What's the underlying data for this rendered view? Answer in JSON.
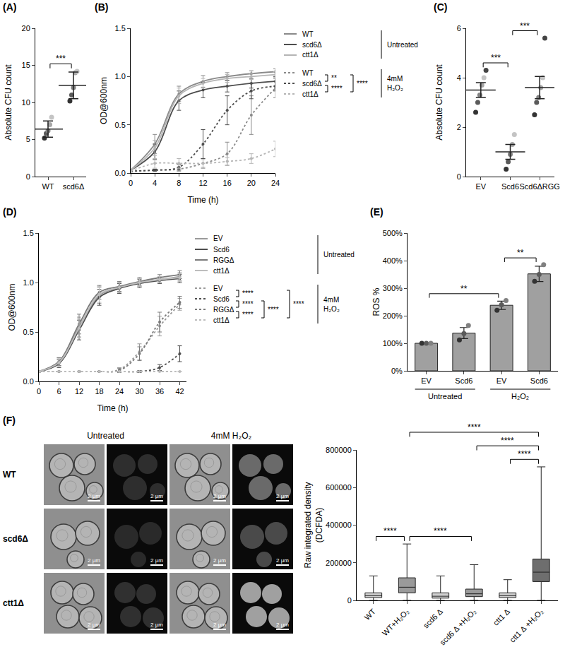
{
  "chart_data": [
    {
      "panel": "(A)",
      "type": "dot",
      "categories": [
        "WT",
        "scd6Δ"
      ],
      "points": [
        [
          5.2,
          5.8,
          6.2,
          7.0,
          8.0
        ],
        [
          10.2,
          11.0,
          12.0,
          14.0,
          14.2
        ]
      ],
      "mean": [
        6.4,
        12.3
      ],
      "error": [
        1.1,
        1.8
      ],
      "ylabel": "Absolute CFU count",
      "ylim": [
        0,
        20
      ],
      "yticks": [
        0,
        5,
        10,
        15,
        20
      ],
      "grid": false,
      "significance": [
        {
          "pair": [
            "WT",
            "scd6Δ"
          ],
          "label": "***"
        }
      ]
    },
    {
      "panel": "(B)",
      "type": "line",
      "xlabel": "Time (h)",
      "ylabel": "OD@600nm",
      "x": [
        0,
        4,
        8,
        12,
        16,
        20,
        24
      ],
      "xlim": [
        0,
        24
      ],
      "xticks": [
        0,
        4,
        8,
        12,
        16,
        20,
        24
      ],
      "ylim": [
        0,
        1.5
      ],
      "yticks": [
        {
          "value": 0,
          "label": "0.0"
        },
        {
          "value": 0.5,
          "label": "0.5"
        },
        {
          "value": 1,
          "label": "1.0"
        },
        {
          "value": 1.5,
          "label": "1.5"
        }
      ],
      "grid": false,
      "groups": [
        {
          "label": "Untreated",
          "series": [
            {
              "name": "WT",
              "color": "#8a8a8a",
              "line_style": "solid",
              "values": [
                0.03,
                0.3,
                0.82,
                0.95,
                1.0,
                1.03,
                1.05
              ],
              "error": [
                0.01,
                0.1,
                0.08,
                0.06,
                0.04,
                0.03,
                0.03
              ]
            },
            {
              "name": "scd6Δ",
              "color": "#4d4d4d",
              "line_style": "solid",
              "values": [
                0.03,
                0.22,
                0.75,
                0.86,
                0.9,
                0.93,
                0.95
              ],
              "error": [
                0.01,
                0.08,
                0.1,
                0.08,
                0.06,
                0.05,
                0.05
              ]
            },
            {
              "name": "ctt1Δ",
              "color": "#b5b5b5",
              "line_style": "solid",
              "values": [
                0.03,
                0.26,
                0.8,
                0.93,
                0.98,
                1.0,
                1.02
              ],
              "error": [
                0.01,
                0.08,
                0.08,
                0.05,
                0.04,
                0.03,
                0.03
              ]
            }
          ]
        },
        {
          "label": "4mM H₂O₂",
          "series": [
            {
              "name": "WT",
              "color": "#8a8a8a",
              "line_style": "dot",
              "values": [
                0.02,
                0.03,
                0.04,
                0.1,
                0.2,
                0.6,
                0.88
              ],
              "error": [
                0.01,
                0.01,
                0.02,
                0.05,
                0.12,
                0.2,
                0.1
              ]
            },
            {
              "name": "scd6Δ",
              "color": "#4d4d4d",
              "line_style": "dot",
              "values": [
                0.02,
                0.03,
                0.06,
                0.3,
                0.65,
                0.85,
                0.9
              ],
              "error": [
                0.01,
                0.01,
                0.03,
                0.15,
                0.15,
                0.08,
                0.05
              ]
            },
            {
              "name": "ctt1Δ",
              "color": "#b5b5b5",
              "line_style": "dot",
              "values": [
                0.02,
                0.1,
                0.1,
                0.1,
                0.12,
                0.15,
                0.25
              ],
              "error": [
                0.01,
                0.05,
                0.05,
                0.04,
                0.04,
                0.05,
                0.08
              ]
            }
          ],
          "significance": [
            {
              "pair": [
                "WT",
                "scd6Δ"
              ],
              "label": "**"
            },
            {
              "pair": [
                "scd6Δ",
                "ctt1Δ"
              ],
              "label": "****"
            },
            {
              "pair": [
                "WT",
                "ctt1Δ"
              ],
              "label": "****"
            }
          ]
        }
      ]
    },
    {
      "panel": "(C)",
      "type": "dot",
      "categories": [
        "EV",
        "Scd6",
        "Scd6ΔRGG"
      ],
      "points": [
        [
          2.6,
          3.0,
          3.3,
          3.7,
          4.0,
          4.3
        ],
        [
          0.3,
          0.6,
          0.9,
          1.3,
          1.7
        ],
        [
          2.5,
          3.0,
          3.2,
          3.6,
          4.0,
          5.6
        ]
      ],
      "mean": [
        3.5,
        1.0,
        3.6
      ],
      "error": [
        0.3,
        0.3,
        0.45
      ],
      "ylabel": "Absolute CFU count",
      "ylim": [
        0,
        6
      ],
      "yticks": [
        0,
        2,
        4,
        6
      ],
      "grid": false,
      "significance": [
        {
          "pair": [
            "EV",
            "Scd6"
          ],
          "label": "***"
        },
        {
          "pair": [
            "Scd6",
            "Scd6ΔRGG"
          ],
          "label": "***"
        }
      ]
    },
    {
      "panel": "(D)",
      "type": "line",
      "xlabel": "Time (h)",
      "ylabel": "OD@600nm",
      "x": [
        0,
        6,
        12,
        18,
        24,
        30,
        36,
        42
      ],
      "xlim": [
        0,
        44
      ],
      "xticks": [
        0,
        6,
        12,
        18,
        24,
        30,
        36,
        42
      ],
      "ylim": [
        0,
        1.5
      ],
      "yticks": [
        {
          "value": 0,
          "label": "0.0"
        },
        {
          "value": 0.5,
          "label": "0.5"
        },
        {
          "value": 1,
          "label": "1.0"
        },
        {
          "value": 1.5,
          "label": "1.5"
        }
      ],
      "grid": false,
      "groups": [
        {
          "label": "Untreated",
          "series": [
            {
              "name": "EV",
              "color": "#9a9a9a",
              "line_style": "solid",
              "values": [
                0.1,
                0.2,
                0.55,
                0.87,
                0.95,
                1.0,
                1.03,
                1.06
              ],
              "error": [
                0.01,
                0.04,
                0.1,
                0.08,
                0.05,
                0.04,
                0.03,
                0.04
              ]
            },
            {
              "name": "Scd6",
              "color": "#4d4d4d",
              "line_style": "solid",
              "values": [
                0.1,
                0.18,
                0.52,
                0.85,
                0.94,
                0.99,
                1.02,
                1.04
              ],
              "error": [
                0.01,
                0.04,
                0.1,
                0.08,
                0.05,
                0.04,
                0.03,
                0.04
              ]
            },
            {
              "name": "RGGΔ",
              "color": "#7a7a7a",
              "line_style": "solid",
              "values": [
                0.1,
                0.2,
                0.58,
                0.9,
                0.96,
                1.01,
                1.05,
                1.08
              ],
              "error": [
                0.01,
                0.04,
                0.1,
                0.07,
                0.05,
                0.04,
                0.03,
                0.04
              ]
            },
            {
              "name": "ctt1Δ",
              "color": "#bdbdbd",
              "line_style": "solid",
              "values": [
                0.1,
                0.19,
                0.54,
                0.88,
                0.95,
                1.0,
                1.03,
                1.05
              ],
              "error": [
                0.01,
                0.04,
                0.1,
                0.08,
                0.05,
                0.04,
                0.03,
                0.04
              ]
            }
          ]
        },
        {
          "label": "4mM H₂O₂",
          "series": [
            {
              "name": "EV",
              "color": "#9a9a9a",
              "line_style": "dot",
              "values": [
                0.1,
                0.1,
                0.1,
                0.1,
                0.12,
                0.3,
                0.56,
                0.78
              ],
              "error": [
                0,
                0,
                0,
                0,
                0.02,
                0.08,
                0.1,
                0.06
              ]
            },
            {
              "name": "Scd6",
              "color": "#4d4d4d",
              "line_style": "dot",
              "values": [
                0.1,
                0.1,
                0.1,
                0.1,
                0.1,
                0.1,
                0.14,
                0.28
              ],
              "error": [
                0,
                0,
                0,
                0,
                0,
                0.01,
                0.03,
                0.08
              ]
            },
            {
              "name": "RGGΔ",
              "color": "#7a7a7a",
              "line_style": "dot",
              "values": [
                0.1,
                0.1,
                0.1,
                0.1,
                0.11,
                0.28,
                0.6,
                0.8
              ],
              "error": [
                0,
                0,
                0,
                0,
                0.02,
                0.07,
                0.1,
                0.06
              ]
            },
            {
              "name": "ctt1Δ",
              "color": "#bdbdbd",
              "line_style": "dot",
              "values": [
                0.1,
                0.1,
                0.1,
                0.1,
                0.1,
                0.1,
                0.1,
                0.1
              ],
              "error": [
                0,
                0,
                0,
                0,
                0,
                0,
                0,
                0
              ]
            }
          ],
          "significance": [
            {
              "pair": [
                "EV",
                "Scd6"
              ],
              "label": "****"
            },
            {
              "pair": [
                "Scd6",
                "RGGΔ"
              ],
              "label": "****"
            },
            {
              "pair": [
                "RGGΔ",
                "ctt1Δ"
              ],
              "label": "****"
            },
            {
              "pair": [
                "Scd6",
                "ctt1Δ"
              ],
              "label": "****"
            },
            {
              "pair": [
                "EV",
                "ctt1Δ"
              ],
              "label": "****"
            }
          ]
        }
      ]
    },
    {
      "panel": "(E)",
      "type": "bar",
      "categories": [
        "EV",
        "Scd6",
        "EV",
        "Scd6"
      ],
      "group_labels": [
        "Untreated",
        "Untreated",
        "H₂O₂",
        "H₂O₂"
      ],
      "values": [
        100,
        137,
        238,
        352
      ],
      "error": [
        1,
        20,
        15,
        28
      ],
      "points": [
        [
          100,
          100,
          100
        ],
        [
          112,
          135,
          165
        ],
        [
          220,
          240,
          255
        ],
        [
          325,
          350,
          385
        ]
      ],
      "color": "#a0a0a0",
      "ylabel": "ROS %",
      "ylim": [
        0,
        500
      ],
      "yticks": [
        {
          "value": 0,
          "label": "0%"
        },
        {
          "value": 100,
          "label": "100%"
        },
        {
          "value": 200,
          "label": "200%"
        },
        {
          "value": 300,
          "label": "300%"
        },
        {
          "value": 400,
          "label": "400%"
        },
        {
          "value": 500,
          "label": "500%"
        }
      ],
      "grid": false,
      "significance": [
        {
          "pair": [
            0,
            2
          ],
          "label": "**"
        },
        {
          "pair": [
            2,
            3
          ],
          "label": "**"
        }
      ]
    },
    {
      "type": "box",
      "categories": [
        "WT",
        "WT+H₂O₂",
        "scd6 Δ",
        "scd6 Δ +H₂O₂",
        "ctt1 Δ",
        "ctt1 Δ +H₂O₂"
      ],
      "min": [
        0,
        0,
        0,
        0,
        0,
        0
      ],
      "q1": [
        15000,
        40000,
        12000,
        20000,
        15000,
        100000
      ],
      "median": [
        25000,
        70000,
        22000,
        35000,
        25000,
        150000
      ],
      "q3": [
        40000,
        120000,
        40000,
        60000,
        40000,
        220000
      ],
      "max": [
        130000,
        300000,
        130000,
        190000,
        110000,
        710000
      ],
      "colors": [
        "#d0d0d0",
        "#9a9a9a",
        "#d0d0d0",
        "#9a9a9a",
        "#d0d0d0",
        "#6e6e6e"
      ],
      "ylabel_lines": [
        "Raw integrated density",
        "(DCFDA)"
      ],
      "ylim": [
        0,
        800000
      ],
      "yticks": [
        0,
        200000,
        400000,
        600000,
        800000
      ],
      "grid": false,
      "significance": [
        {
          "pair": [
            "WT",
            "WT+H₂O₂"
          ],
          "label": "****"
        },
        {
          "pair": [
            "WT+H₂O₂",
            "scd6 Δ +H₂O₂"
          ],
          "label": "****"
        },
        {
          "pair": [
            "scd6 Δ +H₂O₂",
            "ctt1 Δ +H₂O₂"
          ],
          "label": "****"
        },
        {
          "pair": [
            "ctt1 Δ",
            "ctt1 Δ +H₂O₂"
          ],
          "label": "****"
        },
        {
          "pair": [
            "WT+H₂O₂",
            "ctt1 Δ +H₂O₂"
          ],
          "label": "****"
        }
      ]
    }
  ],
  "image_panel": {
    "panel": "(F)",
    "columns": [
      "Untreated",
      "4mM H₂O₂"
    ],
    "rows": [
      "WT",
      "scd6Δ",
      "ctt1Δ"
    ],
    "scale_bar": "2 μm"
  }
}
